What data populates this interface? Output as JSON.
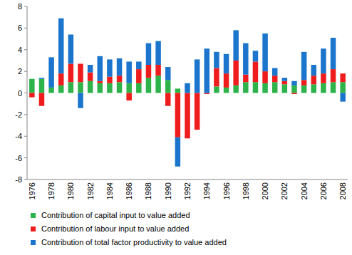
{
  "chart_data": {
    "type": "bar",
    "stacked": true,
    "grid": false,
    "legend": "bottom",
    "categories": [
      1976,
      null,
      1978,
      null,
      1980,
      null,
      1982,
      null,
      1984,
      null,
      1986,
      null,
      1988,
      null,
      1990,
      null,
      1992,
      null,
      1994,
      null,
      1996,
      null,
      1998,
      null,
      2000,
      null,
      2002,
      null,
      2004,
      null,
      2006,
      null,
      2008
    ],
    "ylim": [
      -8,
      8
    ],
    "yticks": [
      -8,
      -6,
      -4,
      -2,
      0,
      2,
      4,
      6,
      8
    ],
    "series": [
      {
        "name": "Contribution of capital input to value added",
        "color": "#2db34a",
        "values": [
          1.3,
          1.3,
          0.5,
          0.7,
          1.0,
          1.0,
          1.1,
          0.9,
          0.9,
          1.0,
          0.9,
          0.9,
          1.4,
          1.6,
          1.2,
          0.4,
          0,
          0,
          0,
          0.6,
          0.5,
          0.7,
          1.0,
          1.0,
          0.9,
          1.0,
          0.8,
          0.7,
          0.7,
          0.8,
          0.9,
          1.0,
          1.0
        ]
      },
      {
        "name": "Contribution of labour input to value added",
        "color": "#ee1c1c",
        "values": [
          -0.4,
          -1.2,
          0,
          1.1,
          1.7,
          1.7,
          0.8,
          0.2,
          0.6,
          0.6,
          -0.7,
          1.3,
          1.2,
          1.0,
          -1.2,
          -4.1,
          -4.2,
          -3.4,
          -0.1,
          1.7,
          1.3,
          2.3,
          0.7,
          1.9,
          1.1,
          0.6,
          0.3,
          -0.1,
          0.5,
          0.8,
          0.9,
          1.2,
          0.8
        ]
      },
      {
        "name": "Contribution of total factor productivity to value added",
        "color": "#1b75cc",
        "values": [
          0,
          0.1,
          2.8,
          5.1,
          2.7,
          -1.4,
          0.7,
          2.3,
          1.6,
          1.6,
          2.0,
          0.7,
          2.0,
          2.2,
          1.2,
          -2.7,
          0.9,
          3.1,
          4.1,
          1.5,
          1.8,
          2.8,
          2.9,
          1.0,
          3.5,
          0.7,
          0.3,
          0.4,
          2.6,
          1.0,
          2.3,
          2.9,
          -0.8
        ]
      }
    ]
  }
}
